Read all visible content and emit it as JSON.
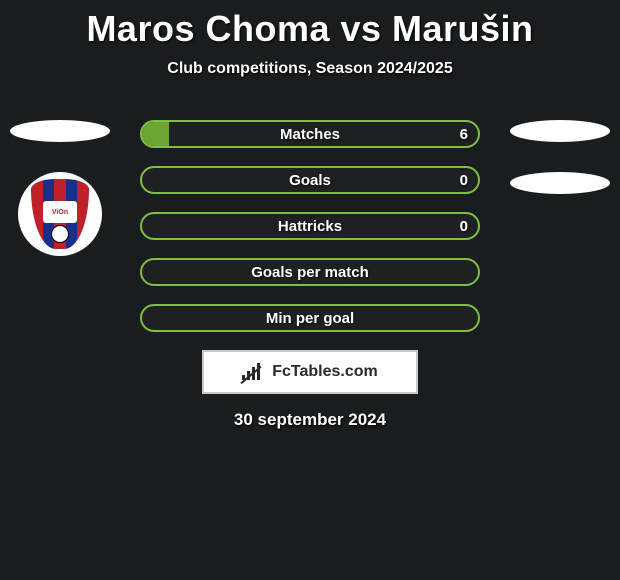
{
  "title": "Maros Choma vs Marušin",
  "subtitle": "Club competitions, Season 2024/2025",
  "accent_color": "#7fbf3f",
  "fill_color": "#6ca534",
  "background_color": "#1a1d1f",
  "border_color_inactive": "#7fbf3f",
  "bars": [
    {
      "label": "Matches",
      "left": "",
      "right": "6",
      "fill_pct": 8
    },
    {
      "label": "Goals",
      "left": "",
      "right": "0",
      "fill_pct": 0
    },
    {
      "label": "Hattricks",
      "left": "",
      "right": "0",
      "fill_pct": 0
    },
    {
      "label": "Goals per match",
      "left": "",
      "right": "",
      "fill_pct": 0
    },
    {
      "label": "Min per goal",
      "left": "",
      "right": "",
      "fill_pct": 0
    }
  ],
  "left_badge": {
    "stripes": [
      "#c0202a",
      "#1a2f8a",
      "#c0202a",
      "#1a2f8a",
      "#c0202a"
    ],
    "crest_text": "ViOn"
  },
  "footer_brand": "FcTables.com",
  "date": "30 september 2024",
  "ellipse_color": "#ffffff"
}
